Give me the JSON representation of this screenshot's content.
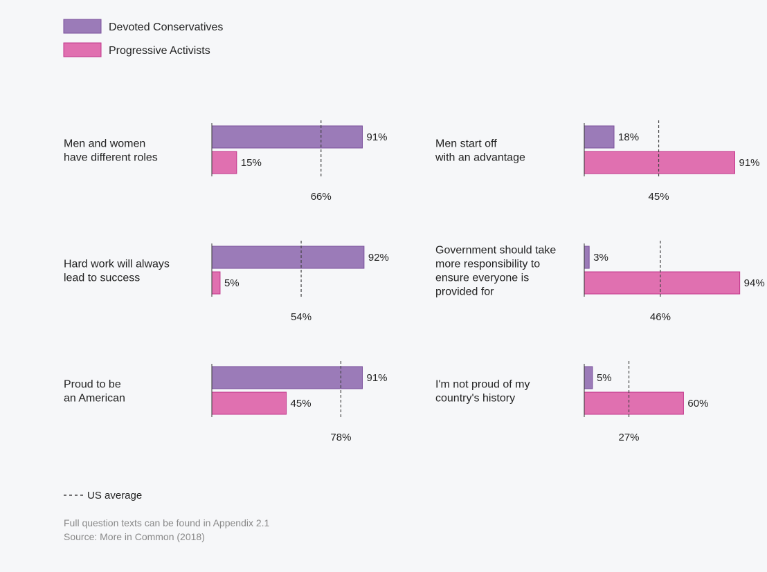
{
  "legend": {
    "items": [
      {
        "name": "Devoted Conservatives",
        "color": "#9b7bb8"
      },
      {
        "name": "Progressive Activists",
        "color": "#e070b0"
      }
    ]
  },
  "colors": {
    "conservative_fill": "#9b7bb8",
    "conservative_stroke": "#7a4f9c",
    "progressive_fill": "#e070b0",
    "progressive_stroke": "#c1358a",
    "axis": "#333333",
    "average_line": "#444444"
  },
  "chart_data": [
    {
      "type": "bar",
      "orientation": "horizontal",
      "label_lines": [
        "Men and women",
        "have different roles"
      ],
      "values": [
        91,
        15
      ],
      "value_labels": [
        "91%",
        "15%"
      ],
      "average": 66,
      "average_label": "66%",
      "xlim": [
        0,
        100
      ]
    },
    {
      "type": "bar",
      "orientation": "horizontal",
      "label_lines": [
        "Men start off",
        "with an advantage"
      ],
      "values": [
        18,
        91
      ],
      "value_labels": [
        "18%",
        "91%"
      ],
      "average": 45,
      "average_label": "45%",
      "xlim": [
        0,
        100
      ]
    },
    {
      "type": "bar",
      "orientation": "horizontal",
      "label_lines": [
        "Hard work will always",
        "lead to success"
      ],
      "values": [
        92,
        5
      ],
      "value_labels": [
        "92%",
        "5%"
      ],
      "average": 54,
      "average_label": "54%",
      "xlim": [
        0,
        100
      ]
    },
    {
      "type": "bar",
      "orientation": "horizontal",
      "label_lines": [
        "Government should take",
        "more responsibility to",
        "ensure everyone is",
        "provided for"
      ],
      "values": [
        3,
        94
      ],
      "value_labels": [
        "3%",
        "94%"
      ],
      "average": 46,
      "average_label": "46%",
      "xlim": [
        0,
        100
      ]
    },
    {
      "type": "bar",
      "orientation": "horizontal",
      "label_lines": [
        "Proud to be",
        "an American"
      ],
      "values": [
        91,
        45
      ],
      "value_labels": [
        "91%",
        "45%"
      ],
      "average": 78,
      "average_label": "78%",
      "xlim": [
        0,
        100
      ]
    },
    {
      "type": "bar",
      "orientation": "horizontal",
      "label_lines": [
        "I'm not proud of my",
        "country's history"
      ],
      "values": [
        5,
        60
      ],
      "value_labels": [
        "5%",
        "60%"
      ],
      "average": 27,
      "average_label": "27%",
      "xlim": [
        0,
        100
      ]
    }
  ],
  "average_legend": "US average",
  "footnotes": [
    "Full question texts can be found in Appendix 2.1",
    "Source: More in Common (2018)"
  ]
}
